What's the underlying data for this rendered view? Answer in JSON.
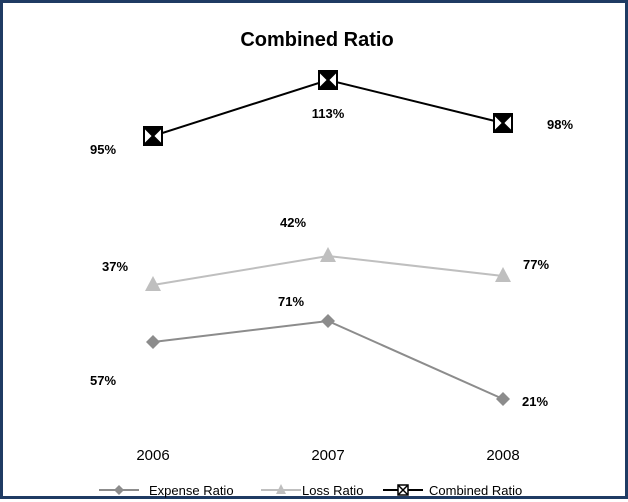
{
  "chart_data": {
    "type": "line",
    "title": "Combined Ratio",
    "categories": [
      "2006",
      "2007",
      "2008"
    ],
    "series": [
      {
        "name": "Expense Ratio",
        "values": [
          57,
          71,
          21
        ],
        "labels": [
          "57%",
          "71%",
          "21%"
        ],
        "color": "#8c8c8c",
        "marker": "diamond"
      },
      {
        "name": "Loss Ratio",
        "values": [
          37,
          42,
          77
        ],
        "labels": [
          "37%",
          "42%",
          "77%"
        ],
        "color": "#bfbfbf",
        "marker": "triangle"
      },
      {
        "name": "Combined Ratio",
        "values": [
          95,
          113,
          98
        ],
        "labels": [
          "95%",
          "113%",
          "98%"
        ],
        "color": "#000000",
        "marker": "x-box"
      }
    ],
    "grid": false,
    "legend_position": "bottom"
  },
  "frame": {
    "border_color": "#1f3b63"
  }
}
